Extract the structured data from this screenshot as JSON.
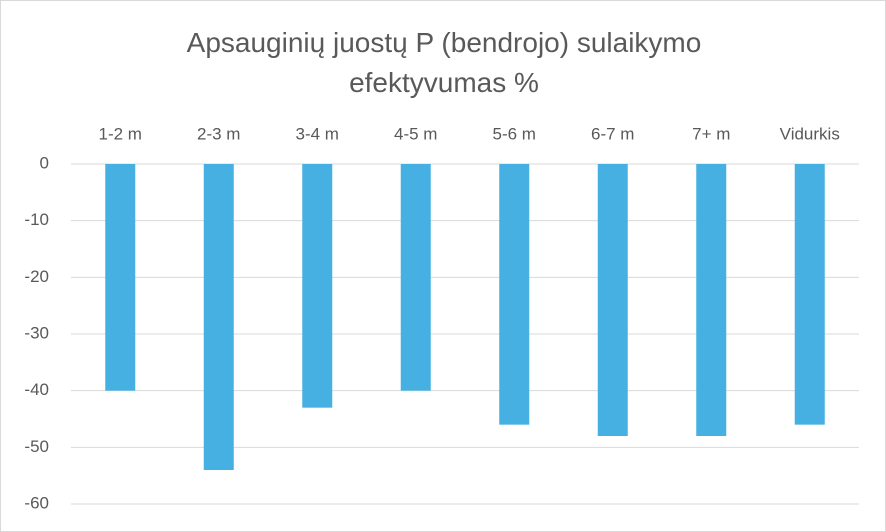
{
  "chart_data": {
    "type": "bar",
    "title": "Apsauginių juostų P (bendrojo) sulaikymo efektyvumas %",
    "categories": [
      "1-2 m",
      "2-3 m",
      "3-4 m",
      "4-5 m",
      "5-6 m",
      "6-7 m",
      "7+ m",
      "Vidurkis"
    ],
    "values": [
      -40,
      -54,
      -43,
      -40,
      -46,
      -48,
      -48,
      -46
    ],
    "color": "#45b0e1",
    "ylim": [
      -60,
      0
    ],
    "yticks": [
      0,
      -10,
      -20,
      -30,
      -40,
      -50,
      -60
    ],
    "grid": true
  }
}
